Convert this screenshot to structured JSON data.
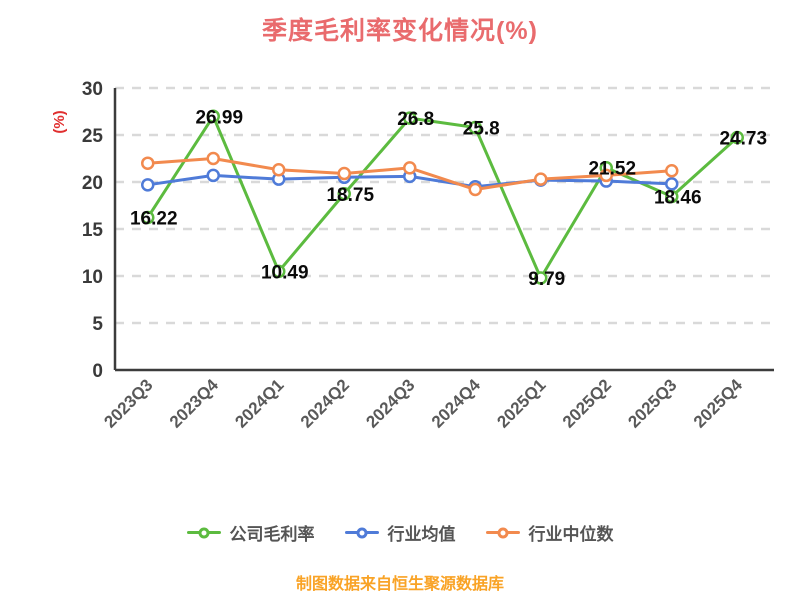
{
  "header": {
    "title": "季度毛利率变化情况(%)"
  },
  "footer": {
    "source_note": "制图数据来自恒生聚源数据库"
  },
  "colors": {
    "title": "#e96b6d",
    "axis": "#3c3c3c",
    "grid": "#d9d9d9",
    "tick_label": "#3a3a3a",
    "category_label": "#595959",
    "data_label": "#0a0a0a",
    "y_axis_name": "#e02f2f",
    "legend_text": "#555555",
    "footer_text": "#f9a326",
    "series_company": "#5cbb3f",
    "series_industry_avg": "#4f7bd8",
    "series_industry_median": "#f28a4e"
  },
  "chart_data": {
    "type": "line",
    "title": "季度毛利率变化情况(%)",
    "ylabel": "(%)",
    "ylim": [
      0,
      30
    ],
    "yticks": [
      0,
      5,
      10,
      15,
      20,
      25,
      30
    ],
    "grid": "dashed-horizontal",
    "legend_position": "bottom",
    "categories": [
      "2023Q3",
      "2023Q4",
      "2024Q1",
      "2024Q2",
      "2024Q3",
      "2024Q4",
      "2025Q1",
      "2025Q2",
      "2025Q3",
      "2025Q4"
    ],
    "series": [
      {
        "name": "公司毛利率",
        "color": "#5cbb3f",
        "show_labels": true,
        "values": [
          16.22,
          26.99,
          10.49,
          18.75,
          26.8,
          25.8,
          9.79,
          21.52,
          18.46,
          24.73
        ]
      },
      {
        "name": "行业均值",
        "color": "#4f7bd8",
        "show_labels": false,
        "values": [
          19.7,
          20.7,
          20.3,
          20.5,
          20.6,
          19.5,
          20.2,
          20.1,
          19.8,
          null
        ]
      },
      {
        "name": "行业中位数",
        "color": "#f28a4e",
        "show_labels": false,
        "values": [
          22.0,
          22.5,
          21.3,
          20.9,
          21.5,
          19.2,
          20.3,
          20.7,
          21.2,
          null
        ]
      }
    ]
  }
}
